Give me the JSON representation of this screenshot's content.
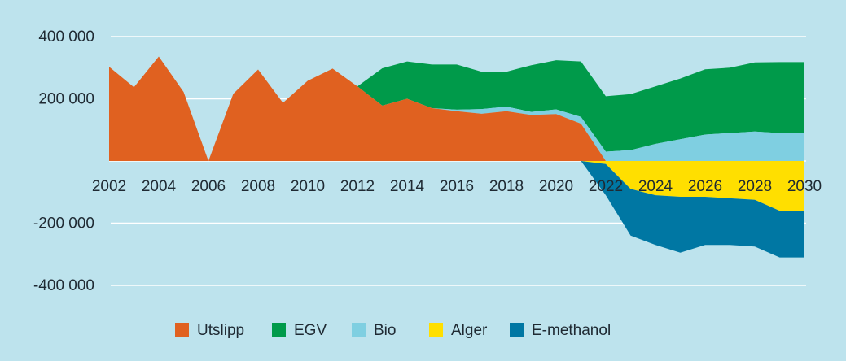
{
  "chart_data": {
    "type": "area",
    "title": "",
    "xlabel": "",
    "ylabel": "",
    "x": [
      2002,
      2003,
      2004,
      2005,
      2006,
      2007,
      2008,
      2009,
      2010,
      2011,
      2012,
      2013,
      2014,
      2015,
      2016,
      2017,
      2018,
      2019,
      2020,
      2021,
      2022,
      2023,
      2024,
      2025,
      2026,
      2027,
      2028,
      2029,
      2030
    ],
    "xlim": [
      2002,
      2030
    ],
    "ylim": [
      -400000,
      400000
    ],
    "x_ticks": [
      2002,
      2004,
      2006,
      2008,
      2010,
      2012,
      2014,
      2016,
      2018,
      2020,
      2022,
      2024,
      2026,
      2028,
      2030
    ],
    "y_ticks": [
      400000,
      200000,
      -200000,
      -400000
    ],
    "y_tick_labels": [
      "400 000",
      "200 000",
      "-200 000",
      "-400 000"
    ],
    "grid": true,
    "legend_position": "bottom",
    "series": [
      {
        "name": "Utslipp",
        "color": "#e06120",
        "values": [
          303000,
          237000,
          336000,
          222000,
          0,
          216000,
          294000,
          187000,
          258000,
          297000,
          240000,
          178000,
          200000,
          170000,
          160000,
          152000,
          160000,
          148000,
          151000,
          120000,
          0,
          0,
          0,
          0,
          0,
          0,
          0,
          0,
          0
        ]
      },
      {
        "name": "EGV",
        "color": "#009a4a",
        "values": [
          0,
          0,
          0,
          0,
          0,
          0,
          0,
          0,
          0,
          0,
          0,
          120000,
          120000,
          140000,
          145000,
          120000,
          112000,
          150000,
          158000,
          178000,
          178000,
          180000,
          185000,
          195000,
          210000,
          210000,
          222000,
          228000,
          228000
        ]
      },
      {
        "name": "Bio",
        "color": "#7fcfe1",
        "values": [
          0,
          0,
          0,
          0,
          0,
          0,
          0,
          0,
          0,
          0,
          0,
          0,
          0,
          0,
          5000,
          15000,
          15000,
          10000,
          15000,
          22000,
          30000,
          35000,
          55000,
          70000,
          85000,
          90000,
          95000,
          90000,
          90000
        ]
      },
      {
        "name": "Alger",
        "color": "#ffdf00",
        "values": [
          0,
          0,
          0,
          0,
          0,
          0,
          0,
          0,
          0,
          0,
          0,
          0,
          0,
          0,
          0,
          0,
          0,
          0,
          0,
          0,
          10000,
          90000,
          110000,
          115000,
          115000,
          120000,
          125000,
          160000,
          160000
        ]
      },
      {
        "name": "E-methanol",
        "color": "#0077a3",
        "values": [
          0,
          0,
          0,
          0,
          0,
          0,
          0,
          0,
          0,
          0,
          0,
          0,
          0,
          0,
          0,
          0,
          0,
          0,
          0,
          0,
          100000,
          150000,
          160000,
          180000,
          155000,
          150000,
          150000,
          150000,
          150000
        ]
      }
    ]
  }
}
